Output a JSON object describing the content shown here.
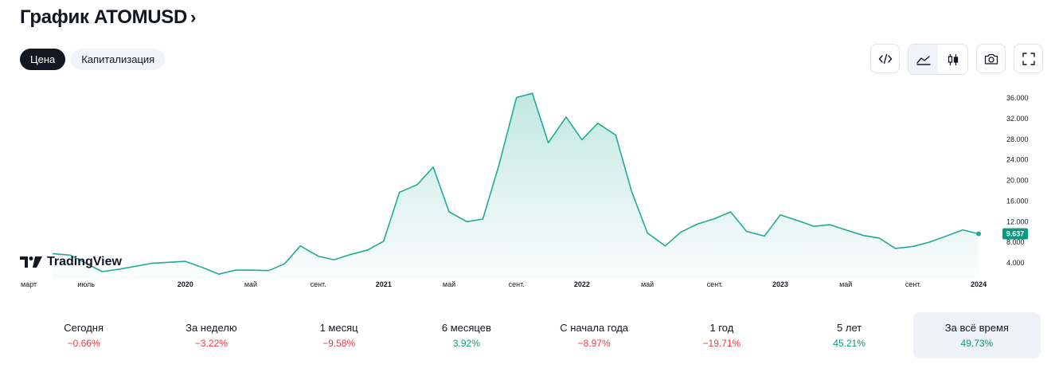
{
  "title": "График ATOMUSD",
  "title_chevron": "›",
  "tabs": [
    {
      "label": "Цена",
      "active": true
    },
    {
      "label": "Капитализация",
      "active": false
    }
  ],
  "toolbar": [
    {
      "icon": "embed-code-icon"
    },
    {
      "icon": "area-chart-icon",
      "selected": true
    },
    {
      "icon": "candlestick-icon"
    },
    {
      "icon": "camera-icon"
    },
    {
      "icon": "fullscreen-icon"
    }
  ],
  "brand": "TradingView",
  "colors": {
    "line": "#22ab94",
    "negative": "#f23645",
    "positive": "#089981",
    "price_label": "#089981"
  },
  "chart_data": {
    "type": "area",
    "x_ticks": [
      {
        "label": "март",
        "x": 2019.17,
        "bold": false
      },
      {
        "label": "июль",
        "x": 2019.5,
        "bold": false
      },
      {
        "label": "2020",
        "x": 2020.0,
        "bold": true
      },
      {
        "label": "май",
        "x": 2020.33,
        "bold": false
      },
      {
        "label": "сент.",
        "x": 2020.67,
        "bold": false
      },
      {
        "label": "2021",
        "x": 2021.0,
        "bold": true
      },
      {
        "label": "май",
        "x": 2021.33,
        "bold": false
      },
      {
        "label": "сент.",
        "x": 2021.67,
        "bold": false
      },
      {
        "label": "2022",
        "x": 2022.0,
        "bold": true
      },
      {
        "label": "май",
        "x": 2022.33,
        "bold": false
      },
      {
        "label": "сент.",
        "x": 2022.67,
        "bold": false
      },
      {
        "label": "2023",
        "x": 2023.0,
        "bold": true
      },
      {
        "label": "май",
        "x": 2023.33,
        "bold": false
      },
      {
        "label": "сент.",
        "x": 2023.67,
        "bold": false
      },
      {
        "label": "2024",
        "x": 2024.0,
        "bold": true
      }
    ],
    "y_ticks": [
      "4.000",
      "8.000",
      "12.000",
      "16.000",
      "20.000",
      "24.000",
      "28.000",
      "32.000",
      "36.000"
    ],
    "ylim": [
      0,
      40
    ],
    "xlim": [
      2019.17,
      2024.08
    ],
    "last_price_label": "9.637",
    "points": [
      [
        2019.33,
        5.8
      ],
      [
        2019.42,
        5.5
      ],
      [
        2019.58,
        2.3
      ],
      [
        2019.67,
        2.8
      ],
      [
        2019.83,
        3.9
      ],
      [
        2020.0,
        4.3
      ],
      [
        2020.08,
        3.2
      ],
      [
        2020.17,
        1.8
      ],
      [
        2020.25,
        2.6
      ],
      [
        2020.33,
        2.6
      ],
      [
        2020.42,
        2.5
      ],
      [
        2020.5,
        3.8
      ],
      [
        2020.58,
        7.3
      ],
      [
        2020.67,
        5.3
      ],
      [
        2020.75,
        4.6
      ],
      [
        2020.83,
        5.6
      ],
      [
        2020.92,
        6.5
      ],
      [
        2021.0,
        8.2
      ],
      [
        2021.08,
        17.7
      ],
      [
        2021.17,
        19.2
      ],
      [
        2021.25,
        22.6
      ],
      [
        2021.33,
        13.9
      ],
      [
        2021.42,
        12.0
      ],
      [
        2021.5,
        12.5
      ],
      [
        2021.58,
        22.8
      ],
      [
        2021.67,
        36.1
      ],
      [
        2021.75,
        36.9
      ],
      [
        2021.83,
        27.3
      ],
      [
        2021.92,
        32.3
      ],
      [
        2022.0,
        27.9
      ],
      [
        2022.08,
        31.1
      ],
      [
        2022.17,
        28.8
      ],
      [
        2022.25,
        17.9
      ],
      [
        2022.33,
        9.8
      ],
      [
        2022.42,
        7.3
      ],
      [
        2022.5,
        10.0
      ],
      [
        2022.58,
        11.5
      ],
      [
        2022.67,
        12.6
      ],
      [
        2022.75,
        13.9
      ],
      [
        2022.83,
        10.1
      ],
      [
        2022.92,
        9.2
      ],
      [
        2023.0,
        13.3
      ],
      [
        2023.08,
        12.3
      ],
      [
        2023.17,
        11.1
      ],
      [
        2023.25,
        11.4
      ],
      [
        2023.33,
        10.4
      ],
      [
        2023.42,
        9.3
      ],
      [
        2023.5,
        8.8
      ],
      [
        2023.58,
        6.8
      ],
      [
        2023.67,
        7.2
      ],
      [
        2023.75,
        8.0
      ],
      [
        2023.83,
        9.1
      ],
      [
        2023.92,
        10.4
      ],
      [
        2024.0,
        9.637
      ]
    ]
  },
  "stats": [
    {
      "label": "Сегодня",
      "value": "−0.66%",
      "sign": "neg"
    },
    {
      "label": "За неделю",
      "value": "−3.22%",
      "sign": "neg"
    },
    {
      "label": "1 месяц",
      "value": "−9.58%",
      "sign": "neg"
    },
    {
      "label": "6 месяцев",
      "value": "3.92%",
      "sign": "pos"
    },
    {
      "label": "С начала года",
      "value": "−8.97%",
      "sign": "neg"
    },
    {
      "label": "1 год",
      "value": "−19.71%",
      "sign": "neg"
    },
    {
      "label": "5 лет",
      "value": "45.21%",
      "sign": "pos"
    },
    {
      "label": "За всё время",
      "value": "49.73%",
      "sign": "pos",
      "selected": true
    }
  ]
}
